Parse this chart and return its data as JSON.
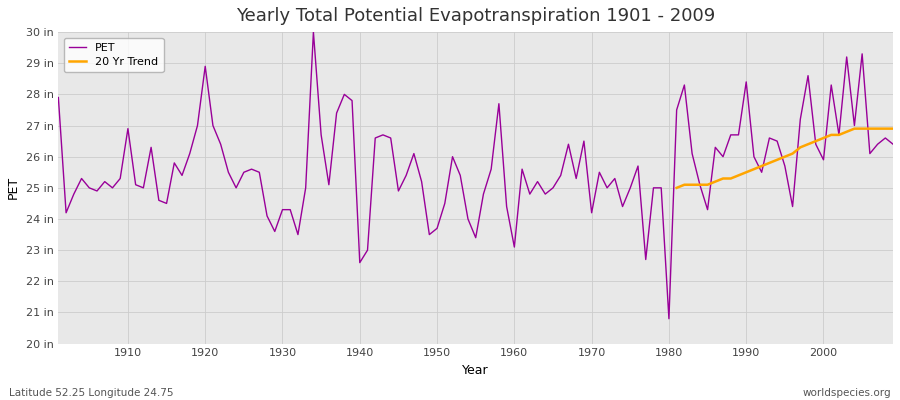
{
  "title": "Yearly Total Potential Evapotranspiration 1901 - 2009",
  "xlabel": "Year",
  "ylabel": "PET",
  "footnote_left": "Latitude 52.25 Longitude 24.75",
  "footnote_right": "worldspecies.org",
  "ylim": [
    20,
    30
  ],
  "pet_color": "#990099",
  "trend_color": "#FFA500",
  "fig_bg_color": "#FFFFFF",
  "plot_bg_color": "#E8E8E8",
  "grid_color": "#CCCCCC",
  "years": [
    1901,
    1902,
    1903,
    1904,
    1905,
    1906,
    1907,
    1908,
    1909,
    1910,
    1911,
    1912,
    1913,
    1914,
    1915,
    1916,
    1917,
    1918,
    1919,
    1920,
    1921,
    1922,
    1923,
    1924,
    1925,
    1926,
    1927,
    1928,
    1929,
    1930,
    1931,
    1932,
    1933,
    1934,
    1935,
    1936,
    1937,
    1938,
    1939,
    1940,
    1941,
    1942,
    1943,
    1944,
    1945,
    1946,
    1947,
    1948,
    1949,
    1950,
    1951,
    1952,
    1953,
    1954,
    1955,
    1956,
    1957,
    1958,
    1959,
    1960,
    1961,
    1962,
    1963,
    1964,
    1965,
    1966,
    1967,
    1968,
    1969,
    1970,
    1971,
    1972,
    1973,
    1974,
    1975,
    1976,
    1977,
    1978,
    1979,
    1980,
    1981,
    1982,
    1983,
    1984,
    1985,
    1986,
    1987,
    1988,
    1989,
    1990,
    1991,
    1992,
    1993,
    1994,
    1995,
    1996,
    1997,
    1998,
    1999,
    2000,
    2001,
    2002,
    2003,
    2004,
    2005,
    2006,
    2007,
    2008,
    2009
  ],
  "pet_values": [
    27.9,
    24.2,
    24.8,
    25.3,
    25.0,
    24.9,
    25.2,
    25.0,
    25.3,
    26.9,
    25.1,
    25.0,
    26.3,
    24.6,
    24.5,
    25.8,
    25.4,
    26.1,
    27.0,
    28.9,
    27.0,
    26.4,
    25.5,
    25.0,
    25.5,
    25.6,
    25.5,
    24.1,
    23.6,
    24.3,
    24.3,
    23.5,
    25.0,
    30.0,
    26.7,
    25.1,
    27.4,
    28.0,
    27.8,
    22.6,
    23.0,
    26.6,
    26.7,
    26.6,
    24.9,
    25.4,
    26.1,
    25.2,
    23.5,
    23.7,
    24.5,
    26.0,
    25.4,
    24.0,
    23.4,
    24.8,
    25.6,
    27.7,
    24.4,
    23.1,
    25.6,
    24.8,
    25.2,
    24.8,
    25.0,
    25.4,
    26.4,
    25.3,
    26.5,
    24.2,
    25.5,
    25.0,
    25.3,
    24.4,
    25.0,
    25.7,
    22.7,
    25.0,
    25.0,
    20.8,
    27.5,
    28.3,
    26.1,
    25.1,
    24.3,
    26.3,
    26.0,
    26.7,
    26.7,
    28.4,
    26.0,
    25.5,
    26.6,
    26.5,
    25.7,
    24.4,
    27.2,
    28.6,
    26.4,
    25.9,
    28.3,
    26.7,
    29.2,
    27.0,
    29.3,
    26.1,
    26.4,
    26.6,
    26.4
  ],
  "trend_years": [
    1981,
    1982,
    1983,
    1984,
    1985,
    1986,
    1987,
    1988,
    1989,
    1990,
    1991,
    1992,
    1993,
    1994,
    1995,
    1996,
    1997,
    1998,
    1999,
    2000,
    2001,
    2002,
    2003,
    2004,
    2005,
    2006,
    2007,
    2008,
    2009
  ],
  "trend_values": [
    25.0,
    25.1,
    25.1,
    25.1,
    25.1,
    25.2,
    25.3,
    25.3,
    25.4,
    25.5,
    25.6,
    25.7,
    25.8,
    25.9,
    26.0,
    26.1,
    26.3,
    26.4,
    26.5,
    26.6,
    26.7,
    26.7,
    26.8,
    26.9,
    26.9,
    26.9,
    26.9,
    26.9,
    26.9
  ],
  "title_fontsize": 13,
  "axis_label_fontsize": 9,
  "tick_fontsize": 8,
  "footnote_fontsize": 7.5
}
